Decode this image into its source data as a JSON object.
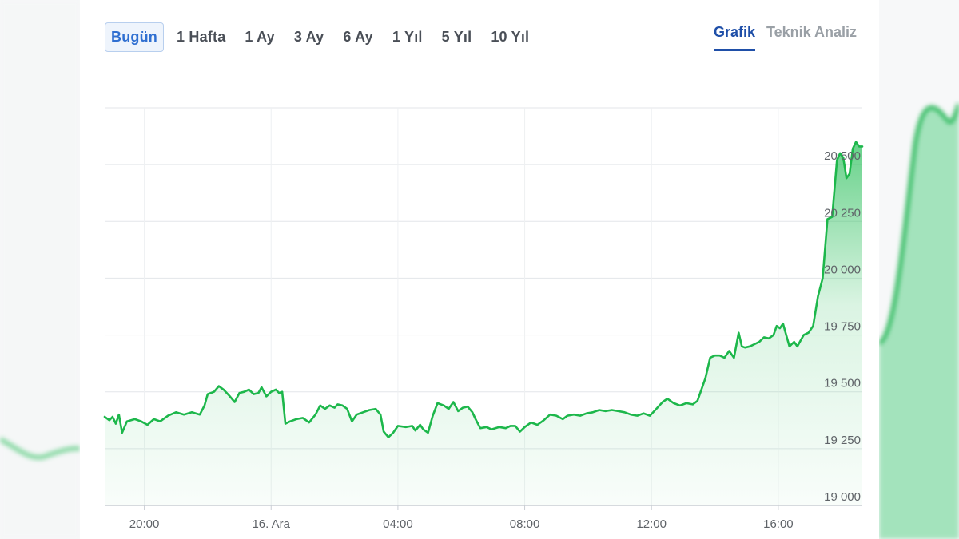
{
  "range_buttons": [
    "Bugün",
    "1 Hafta",
    "1 Ay",
    "3 Ay",
    "6 Ay",
    "1 Yıl",
    "5 Yıl",
    "10 Yıl"
  ],
  "active_range": "Bugün",
  "view_tabs": [
    "Grafik",
    "Teknik Analiz"
  ],
  "active_view": "Grafik",
  "colors": {
    "line": "#1db74b",
    "fill": "#34c262",
    "accent": "#1f4fa8",
    "grid": "#e3e6ea"
  },
  "chart_data": {
    "type": "area",
    "title": "",
    "xlabel": "",
    "ylabel": "",
    "x_ticks": [
      {
        "label": "20:00",
        "t": 20
      },
      {
        "label": "16. Ara",
        "t": 24
      },
      {
        "label": "04:00",
        "t": 28
      },
      {
        "label": "08:00",
        "t": 32
      },
      {
        "label": "12:00",
        "t": 36
      },
      {
        "label": "16:00",
        "t": 40
      }
    ],
    "y_ticks": [
      19000,
      19250,
      19500,
      19750,
      20000,
      20250,
      20500
    ],
    "ylim": [
      19000,
      20750
    ],
    "xlim": [
      18.75,
      42.65
    ],
    "grid": true,
    "series": [
      {
        "values": [
          [
            18.75,
            19390
          ],
          [
            18.9,
            19375
          ],
          [
            19.0,
            19390
          ],
          [
            19.1,
            19360
          ],
          [
            19.2,
            19400
          ],
          [
            19.3,
            19320
          ],
          [
            19.45,
            19370
          ],
          [
            19.7,
            19380
          ],
          [
            19.9,
            19370
          ],
          [
            20.1,
            19355
          ],
          [
            20.3,
            19380
          ],
          [
            20.5,
            19370
          ],
          [
            20.75,
            19395
          ],
          [
            21.0,
            19410
          ],
          [
            21.25,
            19400
          ],
          [
            21.5,
            19410
          ],
          [
            21.75,
            19400
          ],
          [
            21.9,
            19440
          ],
          [
            22.0,
            19490
          ],
          [
            22.2,
            19500
          ],
          [
            22.35,
            19525
          ],
          [
            22.5,
            19510
          ],
          [
            22.7,
            19480
          ],
          [
            22.85,
            19455
          ],
          [
            23.0,
            19495
          ],
          [
            23.15,
            19500
          ],
          [
            23.3,
            19510
          ],
          [
            23.45,
            19490
          ],
          [
            23.6,
            19495
          ],
          [
            23.7,
            19520
          ],
          [
            23.85,
            19480
          ],
          [
            24.0,
            19500
          ],
          [
            24.15,
            19510
          ],
          [
            24.25,
            19495
          ],
          [
            24.35,
            19500
          ],
          [
            24.45,
            19360
          ],
          [
            24.6,
            19370
          ],
          [
            24.8,
            19380
          ],
          [
            25.0,
            19385
          ],
          [
            25.2,
            19365
          ],
          [
            25.4,
            19400
          ],
          [
            25.55,
            19440
          ],
          [
            25.7,
            19425
          ],
          [
            25.85,
            19440
          ],
          [
            26.0,
            19430
          ],
          [
            26.1,
            19445
          ],
          [
            26.25,
            19440
          ],
          [
            26.4,
            19425
          ],
          [
            26.55,
            19370
          ],
          [
            26.7,
            19400
          ],
          [
            26.9,
            19410
          ],
          [
            27.1,
            19420
          ],
          [
            27.3,
            19425
          ],
          [
            27.45,
            19400
          ],
          [
            27.55,
            19325
          ],
          [
            27.7,
            19300
          ],
          [
            27.85,
            19320
          ],
          [
            28.0,
            19350
          ],
          [
            28.25,
            19345
          ],
          [
            28.45,
            19350
          ],
          [
            28.55,
            19330
          ],
          [
            28.7,
            19355
          ],
          [
            28.8,
            19335
          ],
          [
            28.95,
            19320
          ],
          [
            29.1,
            19395
          ],
          [
            29.25,
            19450
          ],
          [
            29.45,
            19440
          ],
          [
            29.6,
            19425
          ],
          [
            29.75,
            19455
          ],
          [
            29.9,
            19415
          ],
          [
            30.05,
            19430
          ],
          [
            30.2,
            19435
          ],
          [
            30.35,
            19410
          ],
          [
            30.45,
            19380
          ],
          [
            30.6,
            19340
          ],
          [
            30.8,
            19345
          ],
          [
            30.95,
            19335
          ],
          [
            31.2,
            19345
          ],
          [
            31.4,
            19340
          ],
          [
            31.55,
            19350
          ],
          [
            31.7,
            19350
          ],
          [
            31.85,
            19325
          ],
          [
            32.0,
            19345
          ],
          [
            32.2,
            19365
          ],
          [
            32.4,
            19355
          ],
          [
            32.6,
            19375
          ],
          [
            32.8,
            19400
          ],
          [
            33.0,
            19395
          ],
          [
            33.2,
            19380
          ],
          [
            33.35,
            19395
          ],
          [
            33.55,
            19400
          ],
          [
            33.75,
            19395
          ],
          [
            33.95,
            19405
          ],
          [
            34.15,
            19410
          ],
          [
            34.35,
            19420
          ],
          [
            34.55,
            19415
          ],
          [
            34.75,
            19420
          ],
          [
            34.95,
            19415
          ],
          [
            35.15,
            19410
          ],
          [
            35.35,
            19400
          ],
          [
            35.55,
            19395
          ],
          [
            35.75,
            19405
          ],
          [
            35.95,
            19395
          ],
          [
            36.15,
            19425
          ],
          [
            36.35,
            19455
          ],
          [
            36.5,
            19470
          ],
          [
            36.7,
            19450
          ],
          [
            36.9,
            19440
          ],
          [
            37.1,
            19450
          ],
          [
            37.3,
            19445
          ],
          [
            37.45,
            19460
          ],
          [
            37.55,
            19500
          ],
          [
            37.7,
            19560
          ],
          [
            37.85,
            19650
          ],
          [
            38.0,
            19660
          ],
          [
            38.15,
            19660
          ],
          [
            38.3,
            19650
          ],
          [
            38.45,
            19680
          ],
          [
            38.6,
            19650
          ],
          [
            38.75,
            19760
          ],
          [
            38.85,
            19700
          ],
          [
            38.95,
            19695
          ],
          [
            39.1,
            19700
          ],
          [
            39.25,
            19710
          ],
          [
            39.4,
            19720
          ],
          [
            39.55,
            19740
          ],
          [
            39.7,
            19735
          ],
          [
            39.85,
            19750
          ],
          [
            39.95,
            19790
          ],
          [
            40.05,
            19780
          ],
          [
            40.15,
            19800
          ],
          [
            40.25,
            19750
          ],
          [
            40.35,
            19700
          ],
          [
            40.5,
            19720
          ],
          [
            40.6,
            19700
          ],
          [
            40.8,
            19750
          ],
          [
            40.95,
            19760
          ],
          [
            41.1,
            19790
          ],
          [
            41.25,
            19920
          ],
          [
            41.4,
            20000
          ],
          [
            41.55,
            20260
          ],
          [
            41.7,
            20270
          ],
          [
            41.85,
            20520
          ],
          [
            41.95,
            20550
          ],
          [
            42.05,
            20530
          ],
          [
            42.15,
            20440
          ],
          [
            42.25,
            20460
          ],
          [
            42.35,
            20570
          ],
          [
            42.45,
            20600
          ],
          [
            42.55,
            20580
          ],
          [
            42.65,
            20580
          ]
        ]
      }
    ]
  }
}
